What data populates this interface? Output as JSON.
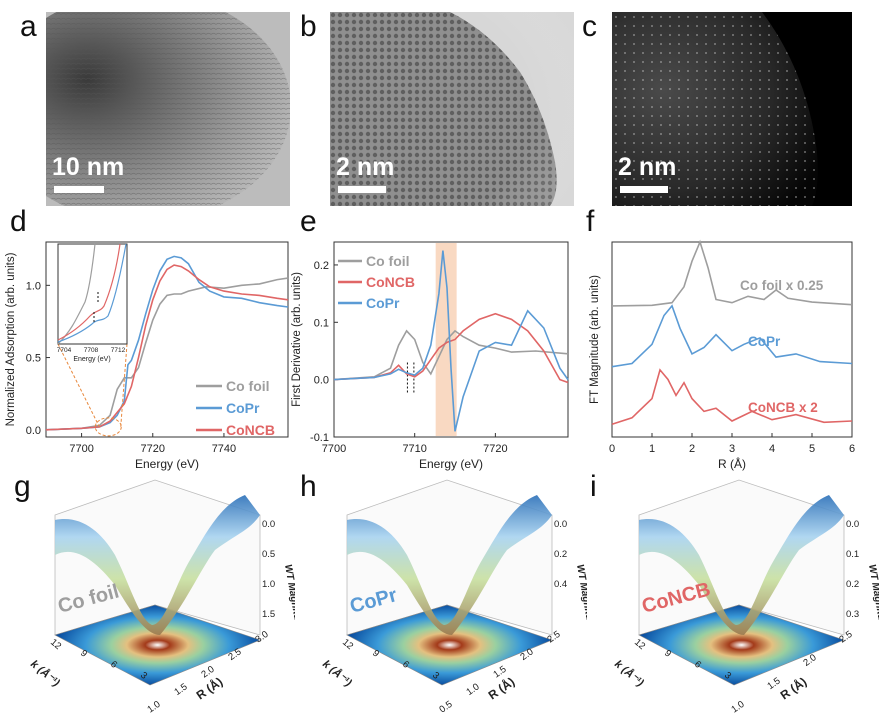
{
  "panels": {
    "a": {
      "letter": "a",
      "scale": "10 nm"
    },
    "b": {
      "letter": "b",
      "scale": "2 nm"
    },
    "c": {
      "letter": "c",
      "scale": "2 nm"
    },
    "d": {
      "letter": "d"
    },
    "e": {
      "letter": "e"
    },
    "f": {
      "letter": "f"
    },
    "g": {
      "letter": "g",
      "label": "Co foil"
    },
    "h": {
      "letter": "h",
      "label": "CoPr"
    },
    "i": {
      "letter": "i",
      "label": "CoNCB"
    }
  },
  "colors": {
    "co_foil": "#9e9e9e",
    "copr": "#5b9bd5",
    "concb": "#e06666",
    "highlight": "#f6c9a8",
    "dashed_circle": "#e8873b"
  },
  "chart_data": [
    {
      "id": "d",
      "type": "line",
      "xlabel": "Energy (eV)",
      "ylabel": "Normalized Adsorption (arb. units)",
      "xlim": [
        7690,
        7758
      ],
      "ylim": [
        -0.05,
        1.3
      ],
      "xticks": [
        "7700",
        "7720",
        "7740"
      ],
      "yticks": [
        "0.0",
        "0.5",
        "1.0"
      ],
      "legend": [
        "Co foil",
        "CoPr",
        "CoNCB"
      ],
      "series": [
        {
          "name": "Co foil",
          "x": [
            7690,
            7700,
            7705,
            7708,
            7710,
            7712,
            7714,
            7716,
            7718,
            7720,
            7722,
            7724,
            7726,
            7728,
            7730,
            7735,
            7740,
            7745,
            7750,
            7755,
            7758
          ],
          "y": [
            0,
            0.01,
            0.03,
            0.1,
            0.28,
            0.36,
            0.36,
            0.43,
            0.6,
            0.76,
            0.87,
            0.93,
            0.94,
            0.94,
            0.96,
            0.99,
            0.98,
            1.0,
            1.01,
            1.04,
            1.05
          ]
        },
        {
          "name": "CoPr",
          "x": [
            7690,
            7700,
            7705,
            7708,
            7710,
            7712,
            7713,
            7714,
            7716,
            7718,
            7720,
            7722,
            7724,
            7726,
            7728,
            7730,
            7733,
            7736,
            7740,
            7745,
            7750,
            7755,
            7758
          ],
          "y": [
            0,
            0.01,
            0.02,
            0.05,
            0.1,
            0.2,
            0.45,
            0.48,
            0.62,
            0.8,
            0.97,
            1.1,
            1.18,
            1.2,
            1.19,
            1.15,
            1.02,
            0.96,
            0.92,
            0.91,
            0.88,
            0.86,
            0.85
          ]
        },
        {
          "name": "CoNCB",
          "x": [
            7690,
            7700,
            7705,
            7708,
            7710,
            7712,
            7714,
            7716,
            7718,
            7720,
            7722,
            7724,
            7726,
            7728,
            7730,
            7733,
            7736,
            7740,
            7745,
            7750,
            7755,
            7758
          ],
          "y": [
            0,
            0.01,
            0.02,
            0.06,
            0.12,
            0.18,
            0.3,
            0.5,
            0.72,
            0.9,
            1.03,
            1.11,
            1.14,
            1.13,
            1.1,
            1.04,
            0.99,
            0.96,
            0.94,
            0.93,
            0.91,
            0.9
          ]
        }
      ],
      "inset": {
        "xlabel": "Energy (eV)",
        "xticks": [
          "7704",
          "7708",
          "7712"
        ]
      }
    },
    {
      "id": "e",
      "type": "line",
      "xlabel": "Energy (eV)",
      "ylabel": "First Derivative (arb. units)",
      "xlim": [
        7700,
        7729
      ],
      "ylim": [
        -0.1,
        0.24
      ],
      "xticks": [
        "7700",
        "7710",
        "7720"
      ],
      "yticks": [
        "-0.1",
        "0.0",
        "0.1",
        "0.2"
      ],
      "legend": [
        "Co foil",
        "CoNCB",
        "CoPr"
      ],
      "series": [
        {
          "name": "Co foil",
          "x": [
            7700,
            7705,
            7707,
            7708,
            7709,
            7710,
            7711,
            7712,
            7713,
            7714,
            7715,
            7716,
            7718,
            7720,
            7722,
            7725,
            7729
          ],
          "y": [
            0,
            0.005,
            0.02,
            0.06,
            0.085,
            0.07,
            0.03,
            0.01,
            0.04,
            0.07,
            0.085,
            0.075,
            0.06,
            0.055,
            0.048,
            0.05,
            0.045
          ]
        },
        {
          "name": "CoNCB",
          "x": [
            7700,
            7705,
            7707,
            7708,
            7709,
            7710,
            7711,
            7712,
            7713,
            7714,
            7715,
            7716,
            7718,
            7720,
            7722,
            7724,
            7726,
            7728,
            7729
          ],
          "y": [
            0,
            0.004,
            0.012,
            0.025,
            0.01,
            0.005,
            0.015,
            0.035,
            0.055,
            0.065,
            0.07,
            0.085,
            0.105,
            0.115,
            0.105,
            0.085,
            0.05,
            0.0,
            -0.005
          ]
        },
        {
          "name": "CoPr",
          "x": [
            7700,
            7705,
            7707,
            7708,
            7709,
            7710,
            7711,
            7712,
            7713,
            7713.5,
            7714,
            7714.5,
            7715,
            7716,
            7718,
            7720,
            7722,
            7724,
            7726,
            7728,
            7729
          ],
          "y": [
            0,
            0.004,
            0.01,
            0.018,
            0.012,
            0.008,
            0.02,
            0.06,
            0.15,
            0.225,
            0.16,
            0.02,
            -0.09,
            -0.03,
            0.05,
            0.065,
            0.06,
            0.12,
            0.09,
            0.02,
            0.0
          ]
        }
      ],
      "highlight": [
        7712.6,
        7715.2
      ],
      "markers": [
        7709.1,
        7709.9
      ]
    },
    {
      "id": "f",
      "type": "line",
      "xlabel": "R (Å)",
      "ylabel": "FT Magnitude (arb. units)",
      "xlim": [
        0,
        6
      ],
      "xticks": [
        "0",
        "1",
        "2",
        "3",
        "4",
        "5",
        "6"
      ],
      "series": [
        {
          "name": "Co foil x 0.25",
          "offset": 2,
          "x": [
            0,
            1,
            1.5,
            1.8,
            2.0,
            2.2,
            2.4,
            2.6,
            3.0,
            3.4,
            3.8,
            4.1,
            4.4,
            5.0,
            6.0
          ],
          "y": [
            0,
            0.01,
            0.05,
            0.3,
            0.7,
            1.0,
            0.6,
            0.1,
            0.05,
            0.15,
            0.1,
            0.25,
            0.12,
            0.06,
            0.02
          ]
        },
        {
          "name": "CoPr",
          "offset": 1,
          "x": [
            0,
            0.5,
            1.0,
            1.3,
            1.5,
            1.7,
            2.0,
            2.3,
            2.6,
            3.0,
            3.3,
            3.7,
            4.1,
            4.6,
            5.2,
            6.0
          ],
          "y": [
            0,
            0.05,
            0.35,
            0.8,
            0.95,
            0.6,
            0.2,
            0.3,
            0.5,
            0.25,
            0.35,
            0.45,
            0.15,
            0.2,
            0.08,
            0.05
          ]
        },
        {
          "name": "CoNCB x 2",
          "offset": 0,
          "x": [
            0,
            0.5,
            1.0,
            1.2,
            1.4,
            1.6,
            1.8,
            2.0,
            2.3,
            2.6,
            3.0,
            3.5,
            4.0,
            4.6,
            5.3,
            6.0
          ],
          "y": [
            0.05,
            0.15,
            0.45,
            0.9,
            0.75,
            0.5,
            0.7,
            0.45,
            0.25,
            0.3,
            0.1,
            0.25,
            0.12,
            0.2,
            0.08,
            0.1
          ]
        }
      ]
    }
  ],
  "wt_plots": [
    {
      "id": "g",
      "zlabel": "WT Magnitude",
      "zticks": [
        "0.0",
        "0.5",
        "1.0",
        "1.5"
      ],
      "rlabel": "R (Å)",
      "rticks": [
        "1.0",
        "1.5",
        "2.0",
        "2.5",
        "3.0"
      ],
      "klabel": "k (Å⁻¹)",
      "kticks": [
        "12",
        "9",
        "6",
        "3"
      ]
    },
    {
      "id": "h",
      "zlabel": "WT Magnitude",
      "zticks": [
        "0.0",
        "0.2",
        "0.4"
      ],
      "rlabel": "R (Å)",
      "rticks": [
        "0.5",
        "1.0",
        "1.5",
        "2.0",
        "2.5"
      ],
      "klabel": "k (Å⁻¹)",
      "kticks": [
        "12",
        "9",
        "6",
        "3"
      ]
    },
    {
      "id": "i",
      "zlabel": "WT Magnitude",
      "zticks": [
        "0.0",
        "0.1",
        "0.2",
        "0.3"
      ],
      "rlabel": "R (Å)",
      "rticks": [
        "1.0",
        "1.5",
        "2.0",
        "2.5"
      ],
      "klabel": "k (Å⁻¹)",
      "kticks": [
        "12",
        "9",
        "6",
        "3"
      ]
    }
  ]
}
